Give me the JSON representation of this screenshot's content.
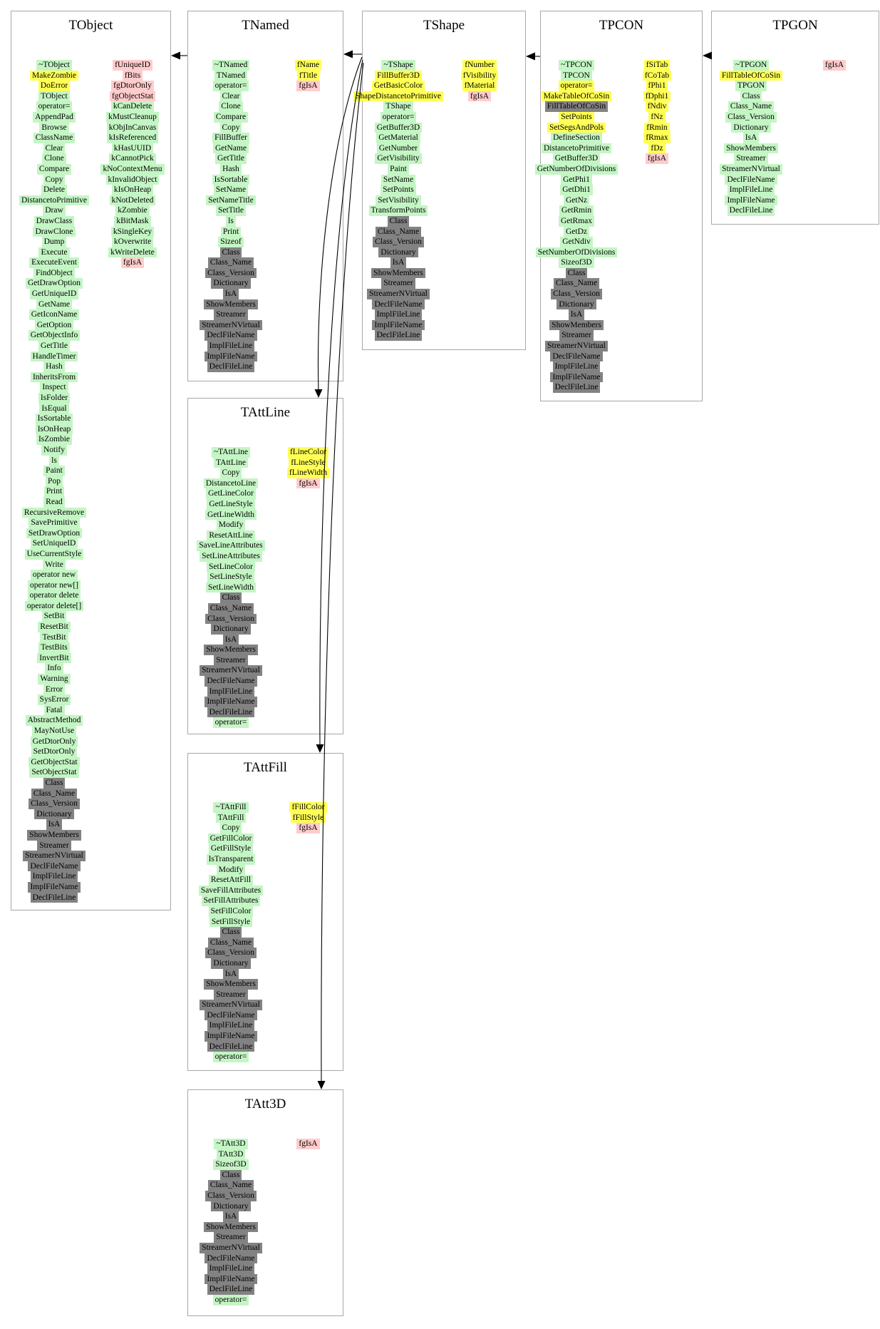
{
  "colors": {
    "g": "#c4f5c4",
    "y": "#ffff55",
    "p": "#ffcccc",
    "d": "#828282"
  },
  "inheritance": [
    {
      "from": "TNamed",
      "to": "TObject"
    },
    {
      "from": "TShape",
      "to": "TNamed"
    },
    {
      "from": "TShape",
      "to": "TAttLine"
    },
    {
      "from": "TShape",
      "to": "TAttFill"
    },
    {
      "from": "TShape",
      "to": "TAtt3D"
    },
    {
      "from": "TPCON",
      "to": "TShape"
    },
    {
      "from": "TPGON",
      "to": "TPCON"
    }
  ],
  "classes": [
    {
      "name": "TObject",
      "methods": [
        [
          "~TObject",
          "g"
        ],
        [
          "MakeZombie",
          "y"
        ],
        [
          "DoError",
          "y"
        ],
        [
          "TObject",
          "g"
        ],
        [
          "operator=",
          "g"
        ],
        [
          "AppendPad",
          "g"
        ],
        [
          "Browse",
          "g"
        ],
        [
          "ClassName",
          "g"
        ],
        [
          "Clear",
          "g"
        ],
        [
          "Clone",
          "g"
        ],
        [
          "Compare",
          "g"
        ],
        [
          "Copy",
          "g"
        ],
        [
          "Delete",
          "g"
        ],
        [
          "DistancetoPrimitive",
          "g"
        ],
        [
          "Draw",
          "g"
        ],
        [
          "DrawClass",
          "g"
        ],
        [
          "DrawClone",
          "g"
        ],
        [
          "Dump",
          "g"
        ],
        [
          "Execute",
          "g"
        ],
        [
          "ExecuteEvent",
          "g"
        ],
        [
          "FindObject",
          "g"
        ],
        [
          "GetDrawOption",
          "g"
        ],
        [
          "GetUniqueID",
          "g"
        ],
        [
          "GetName",
          "g"
        ],
        [
          "GetIconName",
          "g"
        ],
        [
          "GetOption",
          "g"
        ],
        [
          "GetObjectInfo",
          "g"
        ],
        [
          "GetTitle",
          "g"
        ],
        [
          "HandleTimer",
          "g"
        ],
        [
          "Hash",
          "g"
        ],
        [
          "InheritsFrom",
          "g"
        ],
        [
          "Inspect",
          "g"
        ],
        [
          "IsFolder",
          "g"
        ],
        [
          "IsEqual",
          "g"
        ],
        [
          "IsSortable",
          "g"
        ],
        [
          "IsOnHeap",
          "g"
        ],
        [
          "IsZombie",
          "g"
        ],
        [
          "Notify",
          "g"
        ],
        [
          "ls",
          "g"
        ],
        [
          "Paint",
          "g"
        ],
        [
          "Pop",
          "g"
        ],
        [
          "Print",
          "g"
        ],
        [
          "Read",
          "g"
        ],
        [
          "RecursiveRemove",
          "g"
        ],
        [
          "SavePrimitive",
          "g"
        ],
        [
          "SetDrawOption",
          "g"
        ],
        [
          "SetUniqueID",
          "g"
        ],
        [
          "UseCurrentStyle",
          "g"
        ],
        [
          "Write",
          "g"
        ],
        [
          "operator new",
          "g"
        ],
        [
          "operator new[]",
          "g"
        ],
        [
          "operator delete",
          "g"
        ],
        [
          "operator delete[]",
          "g"
        ],
        [
          "SetBit",
          "g"
        ],
        [
          "ResetBit",
          "g"
        ],
        [
          "TestBit",
          "g"
        ],
        [
          "TestBits",
          "g"
        ],
        [
          "InvertBit",
          "g"
        ],
        [
          "Info",
          "g"
        ],
        [
          "Warning",
          "g"
        ],
        [
          "Error",
          "g"
        ],
        [
          "SysError",
          "g"
        ],
        [
          "Fatal",
          "g"
        ],
        [
          "AbstractMethod",
          "g"
        ],
        [
          "MayNotUse",
          "g"
        ],
        [
          "GetDtorOnly",
          "g"
        ],
        [
          "SetDtorOnly",
          "g"
        ],
        [
          "GetObjectStat",
          "g"
        ],
        [
          "SetObjectStat",
          "g"
        ],
        [
          "Class",
          "d"
        ],
        [
          "Class_Name",
          "d"
        ],
        [
          "Class_Version",
          "d"
        ],
        [
          "Dictionary",
          "d"
        ],
        [
          "IsA",
          "d"
        ],
        [
          "ShowMembers",
          "d"
        ],
        [
          "Streamer",
          "d"
        ],
        [
          "StreamerNVirtual",
          "d"
        ],
        [
          "DeclFileName",
          "d"
        ],
        [
          "ImplFileLine",
          "d"
        ],
        [
          "ImplFileName",
          "d"
        ],
        [
          "DeclFileLine",
          "d"
        ]
      ],
      "attrs": [
        [
          "fUniqueID",
          "p"
        ],
        [
          "fBits",
          "p"
        ],
        [
          "fgDtorOnly",
          "p"
        ],
        [
          "fgObjectStat",
          "p"
        ],
        [
          "kCanDelete",
          "g"
        ],
        [
          "kMustCleanup",
          "g"
        ],
        [
          "kObjInCanvas",
          "g"
        ],
        [
          "kIsReferenced",
          "g"
        ],
        [
          "kHasUUID",
          "g"
        ],
        [
          "kCannotPick",
          "g"
        ],
        [
          "kNoContextMenu",
          "g"
        ],
        [
          "kInvalidObject",
          "g"
        ],
        [
          "kIsOnHeap",
          "g"
        ],
        [
          "kNotDeleted",
          "g"
        ],
        [
          "kZombie",
          "g"
        ],
        [
          "kBitMask",
          "g"
        ],
        [
          "kSingleKey",
          "g"
        ],
        [
          "kOverwrite",
          "g"
        ],
        [
          "kWriteDelete",
          "g"
        ],
        [
          "fgIsA",
          "p"
        ]
      ]
    },
    {
      "name": "TNamed",
      "methods": [
        [
          "~TNamed",
          "g"
        ],
        [
          "TNamed",
          "g"
        ],
        [
          "operator=",
          "g"
        ],
        [
          "Clear",
          "g"
        ],
        [
          "Clone",
          "g"
        ],
        [
          "Compare",
          "g"
        ],
        [
          "Copy",
          "g"
        ],
        [
          "FillBuffer",
          "g"
        ],
        [
          "GetName",
          "g"
        ],
        [
          "GetTitle",
          "g"
        ],
        [
          "Hash",
          "g"
        ],
        [
          "IsSortable",
          "g"
        ],
        [
          "SetName",
          "g"
        ],
        [
          "SetNameTitle",
          "g"
        ],
        [
          "SetTitle",
          "g"
        ],
        [
          "ls",
          "g"
        ],
        [
          "Print",
          "g"
        ],
        [
          "Sizeof",
          "g"
        ],
        [
          "Class",
          "d"
        ],
        [
          "Class_Name",
          "d"
        ],
        [
          "Class_Version",
          "d"
        ],
        [
          "Dictionary",
          "d"
        ],
        [
          "IsA",
          "d"
        ],
        [
          "ShowMembers",
          "d"
        ],
        [
          "Streamer",
          "d"
        ],
        [
          "StreamerNVirtual",
          "d"
        ],
        [
          "DeclFileName",
          "d"
        ],
        [
          "ImplFileLine",
          "d"
        ],
        [
          "ImplFileName",
          "d"
        ],
        [
          "DeclFileLine",
          "d"
        ]
      ],
      "attrs": [
        [
          "fName",
          "y"
        ],
        [
          "fTitle",
          "y"
        ],
        [
          "fgIsA",
          "p"
        ]
      ]
    },
    {
      "name": "TShape",
      "methods": [
        [
          "~TShape",
          "g"
        ],
        [
          "FillBuffer3D",
          "y"
        ],
        [
          "GetBasicColor",
          "y"
        ],
        [
          "ShapeDistancetoPrimitive",
          "y"
        ],
        [
          "TShape",
          "g"
        ],
        [
          "operator=",
          "g"
        ],
        [
          "GetBuffer3D",
          "g"
        ],
        [
          "GetMaterial",
          "g"
        ],
        [
          "GetNumber",
          "g"
        ],
        [
          "GetVisibility",
          "g"
        ],
        [
          "Paint",
          "g"
        ],
        [
          "SetName",
          "g"
        ],
        [
          "SetPoints",
          "g"
        ],
        [
          "SetVisibility",
          "g"
        ],
        [
          "TransformPoints",
          "g"
        ],
        [
          "Class",
          "d"
        ],
        [
          "Class_Name",
          "d"
        ],
        [
          "Class_Version",
          "d"
        ],
        [
          "Dictionary",
          "d"
        ],
        [
          "IsA",
          "d"
        ],
        [
          "ShowMembers",
          "d"
        ],
        [
          "Streamer",
          "d"
        ],
        [
          "StreamerNVirtual",
          "d"
        ],
        [
          "DeclFileName",
          "d"
        ],
        [
          "ImplFileLine",
          "d"
        ],
        [
          "ImplFileName",
          "d"
        ],
        [
          "DeclFileLine",
          "d"
        ]
      ],
      "attrs": [
        [
          "fNumber",
          "y"
        ],
        [
          "fVisibility",
          "y"
        ],
        [
          "fMaterial",
          "y"
        ],
        [
          "fgIsA",
          "p"
        ]
      ]
    },
    {
      "name": "TPCON",
      "methods": [
        [
          "~TPCON",
          "g"
        ],
        [
          "TPCON",
          "g"
        ],
        [
          "operator=",
          "y"
        ],
        [
          "MakeTableOfCoSin",
          "y"
        ],
        [
          "FillTableOfCoSin",
          "d"
        ],
        [
          "SetPoints",
          "y"
        ],
        [
          "SetSegsAndPols",
          "y"
        ],
        [
          "DefineSection",
          "g"
        ],
        [
          "DistancetoPrimitive",
          "g"
        ],
        [
          "GetBuffer3D",
          "g"
        ],
        [
          "GetNumberOfDivisions",
          "g"
        ],
        [
          "GetPhi1",
          "g"
        ],
        [
          "GetDhi1",
          "g"
        ],
        [
          "GetNz",
          "g"
        ],
        [
          "GetRmin",
          "g"
        ],
        [
          "GetRmax",
          "g"
        ],
        [
          "GetDz",
          "g"
        ],
        [
          "GetNdiv",
          "g"
        ],
        [
          "SetNumberOfDivisions",
          "g"
        ],
        [
          "Sizeof3D",
          "g"
        ],
        [
          "Class",
          "d"
        ],
        [
          "Class_Name",
          "d"
        ],
        [
          "Class_Version",
          "d"
        ],
        [
          "Dictionary",
          "d"
        ],
        [
          "IsA",
          "d"
        ],
        [
          "ShowMembers",
          "d"
        ],
        [
          "Streamer",
          "d"
        ],
        [
          "StreamerNVirtual",
          "d"
        ],
        [
          "DeclFileName",
          "d"
        ],
        [
          "ImplFileLine",
          "d"
        ],
        [
          "ImplFileName",
          "d"
        ],
        [
          "DeclFileLine",
          "d"
        ]
      ],
      "attrs": [
        [
          "fSiTab",
          "y"
        ],
        [
          "fCoTab",
          "y"
        ],
        [
          "fPhi1",
          "y"
        ],
        [
          "fDphi1",
          "y"
        ],
        [
          "fNdiv",
          "y"
        ],
        [
          "fNz",
          "y"
        ],
        [
          "fRmin",
          "y"
        ],
        [
          "fRmax",
          "y"
        ],
        [
          "fDz",
          "y"
        ],
        [
          "fgIsA",
          "p"
        ]
      ]
    },
    {
      "name": "TPGON",
      "methods": [
        [
          "~TPGON",
          "g"
        ],
        [
          "FillTableOfCoSin",
          "y"
        ],
        [
          "TPGON",
          "g"
        ],
        [
          "Class",
          "g"
        ],
        [
          "Class_Name",
          "g"
        ],
        [
          "Class_Version",
          "g"
        ],
        [
          "Dictionary",
          "g"
        ],
        [
          "IsA",
          "g"
        ],
        [
          "ShowMembers",
          "g"
        ],
        [
          "Streamer",
          "g"
        ],
        [
          "StreamerNVirtual",
          "g"
        ],
        [
          "DeclFileName",
          "g"
        ],
        [
          "ImplFileLine",
          "g"
        ],
        [
          "ImplFileName",
          "g"
        ],
        [
          "DeclFileLine",
          "g"
        ]
      ],
      "attrs": [
        [
          "fgIsA",
          "p"
        ]
      ]
    },
    {
      "name": "TAttLine",
      "methods": [
        [
          "~TAttLine",
          "g"
        ],
        [
          "TAttLine",
          "g"
        ],
        [
          "Copy",
          "g"
        ],
        [
          "DistancetoLine",
          "g"
        ],
        [
          "GetLineColor",
          "g"
        ],
        [
          "GetLineStyle",
          "g"
        ],
        [
          "GetLineWidth",
          "g"
        ],
        [
          "Modify",
          "g"
        ],
        [
          "ResetAttLine",
          "g"
        ],
        [
          "SaveLineAttributes",
          "g"
        ],
        [
          "SetLineAttributes",
          "g"
        ],
        [
          "SetLineColor",
          "g"
        ],
        [
          "SetLineStyle",
          "g"
        ],
        [
          "SetLineWidth",
          "g"
        ],
        [
          "Class",
          "d"
        ],
        [
          "Class_Name",
          "d"
        ],
        [
          "Class_Version",
          "d"
        ],
        [
          "Dictionary",
          "d"
        ],
        [
          "IsA",
          "d"
        ],
        [
          "ShowMembers",
          "d"
        ],
        [
          "Streamer",
          "d"
        ],
        [
          "StreamerNVirtual",
          "d"
        ],
        [
          "DeclFileName",
          "d"
        ],
        [
          "ImplFileLine",
          "d"
        ],
        [
          "ImplFileName",
          "d"
        ],
        [
          "DeclFileLine",
          "d"
        ],
        [
          "operator=",
          "g"
        ]
      ],
      "attrs": [
        [
          "fLineColor",
          "y"
        ],
        [
          "fLineStyle",
          "y"
        ],
        [
          "fLineWidth",
          "y"
        ],
        [
          "fgIsA",
          "p"
        ]
      ]
    },
    {
      "name": "TAttFill",
      "methods": [
        [
          "~TAttFill",
          "g"
        ],
        [
          "TAttFill",
          "g"
        ],
        [
          "Copy",
          "g"
        ],
        [
          "GetFillColor",
          "g"
        ],
        [
          "GetFillStyle",
          "g"
        ],
        [
          "IsTransparent",
          "g"
        ],
        [
          "Modify",
          "g"
        ],
        [
          "ResetAttFill",
          "g"
        ],
        [
          "SaveFillAttributes",
          "g"
        ],
        [
          "SetFillAttributes",
          "g"
        ],
        [
          "SetFillColor",
          "g"
        ],
        [
          "SetFillStyle",
          "g"
        ],
        [
          "Class",
          "d"
        ],
        [
          "Class_Name",
          "d"
        ],
        [
          "Class_Version",
          "d"
        ],
        [
          "Dictionary",
          "d"
        ],
        [
          "IsA",
          "d"
        ],
        [
          "ShowMembers",
          "d"
        ],
        [
          "Streamer",
          "d"
        ],
        [
          "StreamerNVirtual",
          "d"
        ],
        [
          "DeclFileName",
          "d"
        ],
        [
          "ImplFileLine",
          "d"
        ],
        [
          "ImplFileName",
          "d"
        ],
        [
          "DeclFileLine",
          "d"
        ],
        [
          "operator=",
          "g"
        ]
      ],
      "attrs": [
        [
          "fFillColor",
          "y"
        ],
        [
          "fFillStyle",
          "y"
        ],
        [
          "fgIsA",
          "p"
        ]
      ]
    },
    {
      "name": "TAtt3D",
      "methods": [
        [
          "~TAtt3D",
          "g"
        ],
        [
          "TAtt3D",
          "g"
        ],
        [
          "Sizeof3D",
          "g"
        ],
        [
          "Class",
          "d"
        ],
        [
          "Class_Name",
          "d"
        ],
        [
          "Class_Version",
          "d"
        ],
        [
          "Dictionary",
          "d"
        ],
        [
          "IsA",
          "d"
        ],
        [
          "ShowMembers",
          "d"
        ],
        [
          "Streamer",
          "d"
        ],
        [
          "StreamerNVirtual",
          "d"
        ],
        [
          "DeclFileName",
          "d"
        ],
        [
          "ImplFileLine",
          "d"
        ],
        [
          "ImplFileName",
          "d"
        ],
        [
          "DeclFileLine",
          "d"
        ],
        [
          "operator=",
          "g"
        ]
      ],
      "attrs": [
        [
          "fgIsA",
          "p"
        ]
      ]
    }
  ]
}
